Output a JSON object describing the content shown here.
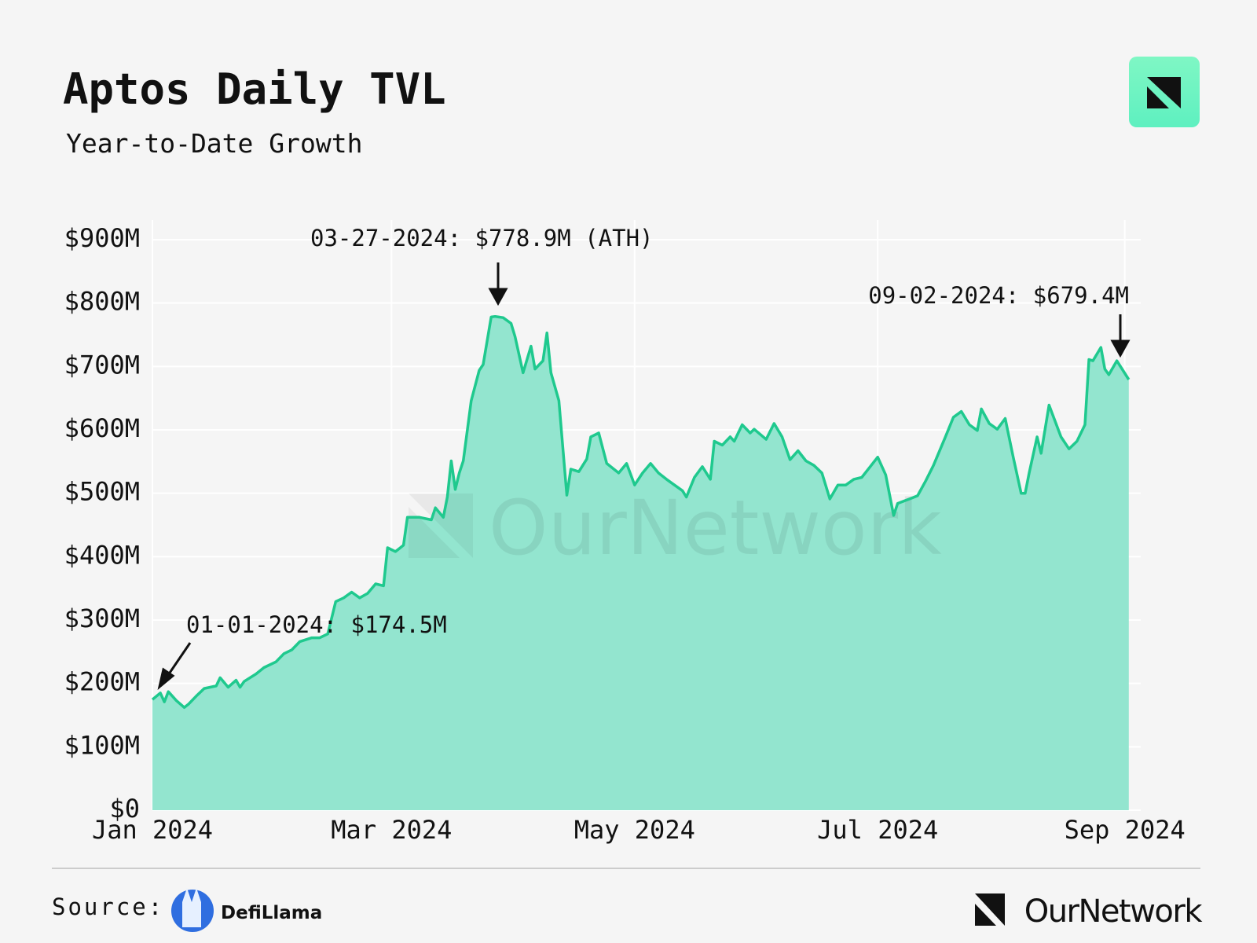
{
  "chart_data": {
    "type": "area",
    "title": "Aptos Daily TVL",
    "subtitle": "Year-to-Date Growth",
    "x": [
      "2024-01-01",
      "2024-01-03",
      "2024-01-04",
      "2024-01-05",
      "2024-01-07",
      "2024-01-09",
      "2024-01-10",
      "2024-01-12",
      "2024-01-14",
      "2024-01-17",
      "2024-01-18",
      "2024-01-20",
      "2024-01-22",
      "2024-01-23",
      "2024-01-24",
      "2024-01-27",
      "2024-01-29",
      "2024-02-01",
      "2024-02-03",
      "2024-02-05",
      "2024-02-07",
      "2024-02-10",
      "2024-02-12",
      "2024-02-14",
      "2024-02-16",
      "2024-02-18",
      "2024-02-20",
      "2024-02-22",
      "2024-02-24",
      "2024-02-26",
      "2024-02-28",
      "2024-02-29",
      "2024-03-02",
      "2024-03-04",
      "2024-03-05",
      "2024-03-08",
      "2024-03-11",
      "2024-03-12",
      "2024-03-14",
      "2024-03-15",
      "2024-03-16",
      "2024-03-17",
      "2024-03-18",
      "2024-03-19",
      "2024-03-21",
      "2024-03-23",
      "2024-03-24",
      "2024-03-26",
      "2024-03-27",
      "2024-03-29",
      "2024-03-31",
      "2024-04-01",
      "2024-04-03",
      "2024-04-05",
      "2024-04-06",
      "2024-04-08",
      "2024-04-09",
      "2024-04-10",
      "2024-04-12",
      "2024-04-14",
      "2024-04-15",
      "2024-04-17",
      "2024-04-19",
      "2024-04-20",
      "2024-04-22",
      "2024-04-24",
      "2024-04-27",
      "2024-04-29",
      "2024-05-01",
      "2024-05-03",
      "2024-05-05",
      "2024-05-07",
      "2024-05-09",
      "2024-05-11",
      "2024-05-13",
      "2024-05-14",
      "2024-05-16",
      "2024-05-18",
      "2024-05-20",
      "2024-05-21",
      "2024-05-23",
      "2024-05-25",
      "2024-05-26",
      "2024-05-28",
      "2024-05-30",
      "2024-05-31",
      "2024-06-03",
      "2024-06-05",
      "2024-06-07",
      "2024-06-09",
      "2024-06-11",
      "2024-06-13",
      "2024-06-15",
      "2024-06-17",
      "2024-06-19",
      "2024-06-21",
      "2024-06-23",
      "2024-06-25",
      "2024-06-27",
      "2024-06-29",
      "2024-07-01",
      "2024-07-03",
      "2024-07-05",
      "2024-07-06",
      "2024-07-09",
      "2024-07-11",
      "2024-07-13",
      "2024-07-15",
      "2024-07-18",
      "2024-07-20",
      "2024-07-22",
      "2024-07-24",
      "2024-07-26",
      "2024-07-27",
      "2024-07-29",
      "2024-07-31",
      "2024-08-02",
      "2024-08-04",
      "2024-08-06",
      "2024-08-07",
      "2024-08-08",
      "2024-08-10",
      "2024-08-11",
      "2024-08-13",
      "2024-08-16",
      "2024-08-18",
      "2024-08-20",
      "2024-08-22",
      "2024-08-23",
      "2024-08-24",
      "2024-08-26",
      "2024-08-27",
      "2024-08-28",
      "2024-08-30",
      "2024-09-02"
    ],
    "values": [
      174.5,
      185,
      171,
      187,
      173,
      162,
      167,
      180,
      192,
      196,
      209,
      194,
      205,
      194,
      203,
      215,
      225,
      234,
      247,
      253,
      266,
      272,
      272,
      278,
      329,
      335,
      344,
      335,
      342,
      357,
      354,
      414,
      408,
      418,
      462,
      462,
      458,
      477,
      462,
      494,
      551,
      506,
      532,
      551,
      646,
      694,
      703,
      778,
      778.9,
      777,
      768,
      747,
      690,
      732,
      696,
      709,
      753,
      690,
      646,
      497,
      538,
      534,
      554,
      589,
      595,
      547,
      532,
      547,
      513,
      532,
      547,
      532,
      522,
      513,
      504,
      494,
      525,
      542,
      522,
      582,
      576,
      589,
      582,
      608,
      595,
      601,
      585,
      610,
      589,
      553,
      567,
      551,
      544,
      532,
      491,
      513,
      513,
      522,
      525,
      541,
      557,
      529,
      465,
      484,
      491,
      496,
      519,
      544,
      589,
      620,
      629,
      608,
      599,
      633,
      610,
      601,
      618,
      557,
      500,
      500,
      532,
      589,
      563,
      639,
      589,
      570,
      582,
      608,
      711,
      709,
      730,
      696,
      687,
      709,
      679.4
    ],
    "color": "#1fc98e",
    "fill_color": "#93e5cf",
    "xlim": [
      "2024-01-01",
      "2024-09-05"
    ],
    "xticks": [
      {
        "value": "2024-01-01",
        "label": "Jan 2024"
      },
      {
        "value": "2024-03-01",
        "label": "Mar 2024"
      },
      {
        "value": "2024-05-01",
        "label": "May 2024"
      },
      {
        "value": "2024-07-01",
        "label": "Jul 2024"
      },
      {
        "value": "2024-09-01",
        "label": "Sep 2024"
      }
    ],
    "ylim": [
      0,
      900
    ],
    "yticks": [
      {
        "value": 0,
        "label": "$0"
      },
      {
        "value": 100,
        "label": "$100M"
      },
      {
        "value": 200,
        "label": "$200M"
      },
      {
        "value": 300,
        "label": "$300M"
      },
      {
        "value": 400,
        "label": "$400M"
      },
      {
        "value": 500,
        "label": "$500M"
      },
      {
        "value": 600,
        "label": "$600M"
      },
      {
        "value": 700,
        "label": "$700M"
      },
      {
        "value": 800,
        "label": "$800M"
      },
      {
        "value": 900,
        "label": "$900M"
      }
    ],
    "grid": true,
    "annotations": [
      "01-01-2024: $174.5M",
      "03-27-2024: $778.9M (ATH)",
      "09-02-2024: $679.4M"
    ],
    "watermark": "OurNetwork",
    "source_label": "Source:",
    "source_name": "DefiLlama",
    "brand": "OurNetwork"
  }
}
